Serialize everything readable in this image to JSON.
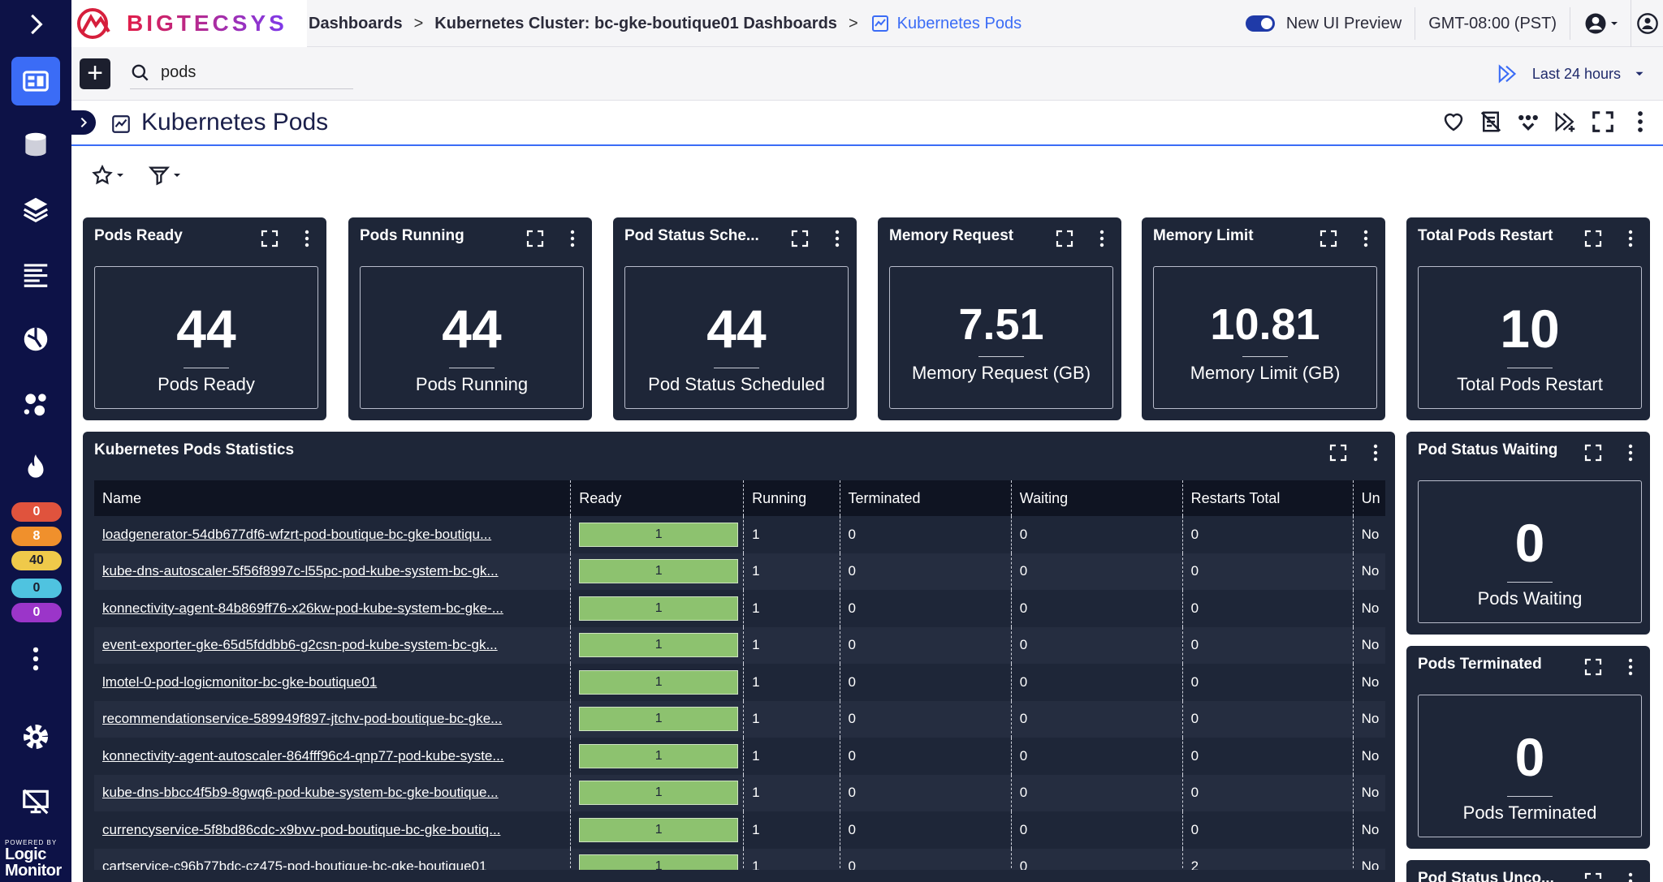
{
  "app": {
    "logo_text": "BIGTECSYS",
    "brand_footer_small": "POWERED BY",
    "brand_footer_big": "Logic Monitor"
  },
  "breadcrumb": {
    "items": [
      "Dashboards",
      "Kubernetes Cluster: bc-gke-boutique01 Dashboards"
    ],
    "current": "Kubernetes Pods"
  },
  "header": {
    "ui_preview_label": "New UI Preview",
    "timezone": "GMT-08:00 (PST)"
  },
  "search": {
    "value": "pods",
    "placeholder": "Search"
  },
  "time_range": "Last 24 hours",
  "page_title": "Kubernetes Pods",
  "nav_badges": [
    {
      "value": "0",
      "color": "#e0533d"
    },
    {
      "value": "8",
      "color": "#f0902c"
    },
    {
      "value": "40",
      "color": "#efc94a"
    },
    {
      "value": "0",
      "color": "#4fc3e0"
    },
    {
      "value": "0",
      "color": "#9b35c9"
    }
  ],
  "widgets": [
    {
      "title": "Pods Ready",
      "value": "44",
      "label": "Pods Ready"
    },
    {
      "title": "Pods Running",
      "value": "44",
      "label": "Pods Running"
    },
    {
      "title": "Pod Status Sche...",
      "value": "44",
      "label": "Pod Status Scheduled"
    },
    {
      "title": "Memory Request",
      "value": "7.51",
      "label": "Memory Request (GB)"
    },
    {
      "title": "Memory Limit",
      "value": "10.81",
      "label": "Memory Limit (GB)"
    },
    {
      "title": "Total Pods Restart",
      "value": "10",
      "label": "Total Pods Restart"
    },
    {
      "title": "Pod Status Waiting",
      "value": "0",
      "label": "Pods Waiting"
    },
    {
      "title": "Pods Terminated",
      "value": "0",
      "label": "Pods Terminated"
    },
    {
      "title": "Pod Status Unco..."
    }
  ],
  "stats_table": {
    "title": "Kubernetes Pods Statistics",
    "columns": [
      "Name",
      "Ready",
      "Running",
      "Terminated",
      "Waiting",
      "Restarts Total",
      "Un"
    ],
    "rows": [
      [
        "loadgenerator-54db677df6-wfzrt-pod-boutique-bc-gke-boutiqu...",
        "1",
        "1",
        "0",
        "0",
        "0",
        "No"
      ],
      [
        "kube-dns-autoscaler-5f56f8997c-l55pc-pod-kube-system-bc-gk...",
        "1",
        "1",
        "0",
        "0",
        "0",
        "No"
      ],
      [
        "konnectivity-agent-84b869ff76-x26kw-pod-kube-system-bc-gke-...",
        "1",
        "1",
        "0",
        "0",
        "0",
        "No"
      ],
      [
        "event-exporter-gke-65d5fddbb6-g2csn-pod-kube-system-bc-gk...",
        "1",
        "1",
        "0",
        "0",
        "0",
        "No"
      ],
      [
        "lmotel-0-pod-logicmonitor-bc-gke-boutique01",
        "1",
        "1",
        "0",
        "0",
        "0",
        "No"
      ],
      [
        "recommendationservice-589949f897-jtchv-pod-boutique-bc-gke...",
        "1",
        "1",
        "0",
        "0",
        "0",
        "No"
      ],
      [
        "konnectivity-agent-autoscaler-864fff96c4-qnp77-pod-kube-syste...",
        "1",
        "1",
        "0",
        "0",
        "0",
        "No"
      ],
      [
        "kube-dns-bbcc4f5b9-8gwq6-pod-kube-system-bc-gke-boutique...",
        "1",
        "1",
        "0",
        "0",
        "0",
        "No"
      ],
      [
        "currencyservice-5f8bd86cdc-x9bvv-pod-boutique-bc-gke-boutiq...",
        "1",
        "1",
        "0",
        "0",
        "0",
        "No"
      ],
      [
        "cartservice-c96b77bdc-cz475-pod-boutique-bc-gke-boutique01",
        "1",
        "1",
        "0",
        "0",
        "2",
        "No"
      ]
    ]
  }
}
